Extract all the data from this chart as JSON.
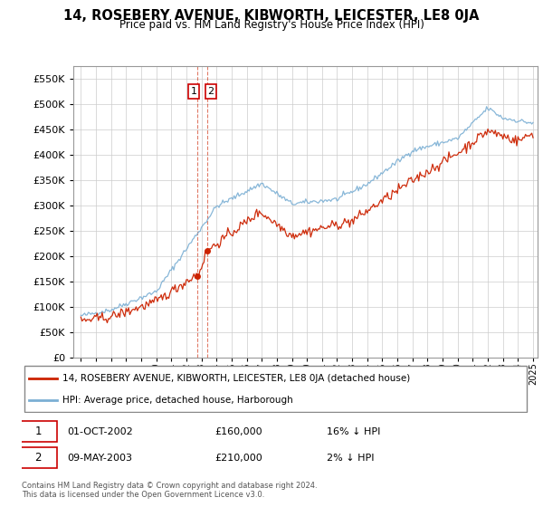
{
  "title": "14, ROSEBERY AVENUE, KIBWORTH, LEICESTER, LE8 0JA",
  "subtitle": "Price paid vs. HM Land Registry's House Price Index (HPI)",
  "hpi_label": "HPI: Average price, detached house, Harborough",
  "property_label": "14, ROSEBERY AVENUE, KIBWORTH, LEICESTER, LE8 0JA (detached house)",
  "hpi_color": "#7bafd4",
  "property_color": "#cc2200",
  "vline_color": "#cc2200",
  "footer": "Contains HM Land Registry data © Crown copyright and database right 2024.\nThis data is licensed under the Open Government Licence v3.0.",
  "transactions": [
    {
      "num": 1,
      "date": "01-OCT-2002",
      "price": "£160,000",
      "rel": "16% ↓ HPI",
      "year": 2002.75,
      "value": 160000
    },
    {
      "num": 2,
      "date": "09-MAY-2003",
      "price": "£210,000",
      "rel": "2% ↓ HPI",
      "year": 2003.37,
      "value": 210000
    }
  ],
  "ylim": [
    0,
    575000
  ],
  "yticks": [
    0,
    50000,
    100000,
    150000,
    200000,
    250000,
    300000,
    350000,
    400000,
    450000,
    500000,
    550000
  ],
  "year_start": 1995,
  "year_end": 2025
}
